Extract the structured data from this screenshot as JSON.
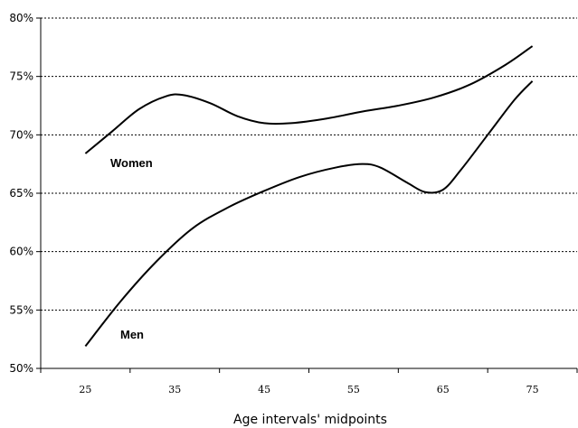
{
  "chart_data": {
    "type": "line",
    "title": "",
    "xlabel": "Age intervals' midpoints",
    "ylabel": "",
    "x": [
      25,
      35,
      45,
      55,
      65,
      75
    ],
    "xlim": [
      20,
      80
    ],
    "ylim": [
      0.5,
      0.8
    ],
    "yticks": [
      "50%",
      "55%",
      "60%",
      "65%",
      "70%",
      "75%",
      "80%"
    ],
    "xticks": [
      "25",
      "35",
      "45",
      "55",
      "65",
      "75"
    ],
    "grid": "horizontal-dotted",
    "legend": "inline-labels",
    "series": [
      {
        "name": "Women",
        "x": [
          25,
          28,
          31,
          34,
          36,
          39,
          42,
          45,
          48,
          52,
          56,
          60,
          64,
          68,
          72,
          75
        ],
        "values": [
          0.684,
          0.703,
          0.722,
          0.733,
          0.734,
          0.727,
          0.716,
          0.71,
          0.71,
          0.714,
          0.72,
          0.725,
          0.732,
          0.743,
          0.76,
          0.776
        ]
      },
      {
        "name": "Men",
        "x": [
          25,
          29,
          33,
          37,
          41,
          45,
          49,
          53,
          56,
          58,
          61,
          63,
          65,
          67,
          70,
          73,
          75
        ],
        "values": [
          0.519,
          0.558,
          0.592,
          0.62,
          0.638,
          0.652,
          0.664,
          0.672,
          0.675,
          0.672,
          0.659,
          0.651,
          0.653,
          0.67,
          0.7,
          0.73,
          0.746
        ]
      }
    ],
    "labels": {
      "women": "Women",
      "men": "Men"
    }
  }
}
